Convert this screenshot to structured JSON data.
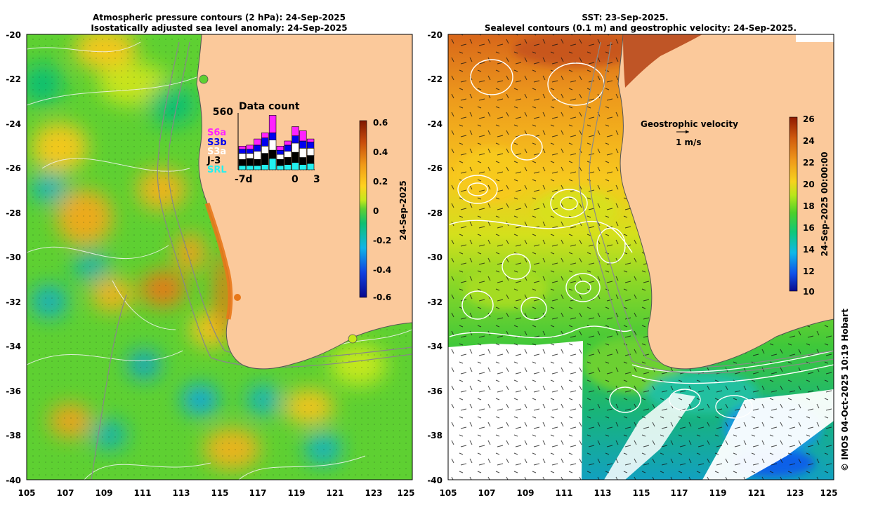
{
  "left_panel": {
    "title_line1": "Atmospheric pressure contours (2 hPa): 24-Sep-2025",
    "title_line2": "Isostatically adjusted sea level anomaly: 24-Sep-2025",
    "y_ticks": [
      "-20",
      "-22",
      "-24",
      "-26",
      "-28",
      "-30",
      "-32",
      "-34",
      "-36",
      "-38",
      "-40"
    ],
    "x_ticks": [
      "105",
      "107",
      "109",
      "111",
      "113",
      "115",
      "117",
      "119",
      "121",
      "123",
      "125"
    ],
    "colorbar": {
      "label": "24-Sep-2025",
      "ticks": [
        "0.6",
        "0.4",
        "0.2",
        "0",
        "-0.2",
        "-0.4",
        "-0.6"
      ],
      "colors": [
        "#08088c",
        "#1040e0",
        "#10b4e8",
        "#10c070",
        "#5ed032",
        "#c4e81c",
        "#ffd21e",
        "#f09a18",
        "#c84c0c",
        "#801800"
      ]
    },
    "inset": {
      "title": "Data count",
      "max_label": "560",
      "x_labels": [
        "-7d",
        "0",
        "3"
      ],
      "missions": [
        {
          "name": "S6a",
          "color": "#ff22ff"
        },
        {
          "name": "S3b",
          "color": "#0000ee"
        },
        {
          "name": "S3a",
          "color": "#ffffff"
        },
        {
          "name": "J-3",
          "color": "#000000"
        },
        {
          "name": "SRL",
          "color": "#22f0f0"
        }
      ],
      "bars": [
        {
          "day": -7,
          "SRL": 40,
          "J-3": 60,
          "S3a": 60,
          "S3b": 40,
          "S6a": 30
        },
        {
          "day": -6,
          "SRL": 40,
          "J-3": 70,
          "S3a": 50,
          "S3b": 40,
          "S6a": 40
        },
        {
          "day": -5,
          "SRL": 40,
          "J-3": 60,
          "S3a": 80,
          "S3b": 60,
          "S6a": 60
        },
        {
          "day": -4,
          "SRL": 50,
          "J-3": 110,
          "S3a": 70,
          "S3b": 80,
          "S6a": 50
        },
        {
          "day": -3,
          "SRL": 110,
          "J-3": 80,
          "S3a": 100,
          "S3b": 70,
          "S6a": 170
        },
        {
          "day": -2,
          "SRL": 40,
          "J-3": 60,
          "S3a": 50,
          "S3b": 40,
          "S6a": 40
        },
        {
          "day": -1,
          "SRL": 50,
          "J-3": 70,
          "S3a": 60,
          "S3b": 60,
          "S6a": 40
        },
        {
          "day": 0,
          "SRL": 70,
          "J-3": 100,
          "S3a": 90,
          "S3b": 70,
          "S6a": 90
        },
        {
          "day": 1,
          "SRL": 50,
          "J-3": 70,
          "S3a": 90,
          "S3b": 70,
          "S6a": 100
        },
        {
          "day": 2,
          "SRL": 60,
          "J-3": 80,
          "S3a": 70,
          "S3b": 60,
          "S6a": 30
        }
      ]
    }
  },
  "right_panel": {
    "title_line1": "SST: 23-Sep-2025.",
    "title_line2": "Sealevel contours (0.1 m) and geostrophic velocity: 24-Sep-2025.",
    "y_ticks": [
      "-20",
      "-22",
      "-24",
      "-26",
      "-28",
      "-30",
      "-32",
      "-34",
      "-36",
      "-38",
      "-40"
    ],
    "x_ticks": [
      "105",
      "107",
      "109",
      "111",
      "113",
      "115",
      "117",
      "119",
      "121",
      "123",
      "125"
    ],
    "velocity_label": "Geostrophic velocity",
    "velocity_scale": "1 m/s",
    "colorbar": {
      "label": "24-Sep-2025 00:00:00",
      "ticks": [
        "26",
        "24",
        "22",
        "20",
        "18",
        "16",
        "14",
        "12",
        "10"
      ],
      "colors": [
        "#0a0a8c",
        "#1050e8",
        "#10b8e8",
        "#10c878",
        "#4cd02a",
        "#b8e61a",
        "#f6d21c",
        "#f09a1a",
        "#d05a0e",
        "#901a00"
      ]
    }
  },
  "credit": "© IMOS 04-Oct-2025 10:19 Hobart",
  "colors": {
    "land": "#fbc99b",
    "coast": "#555555"
  }
}
